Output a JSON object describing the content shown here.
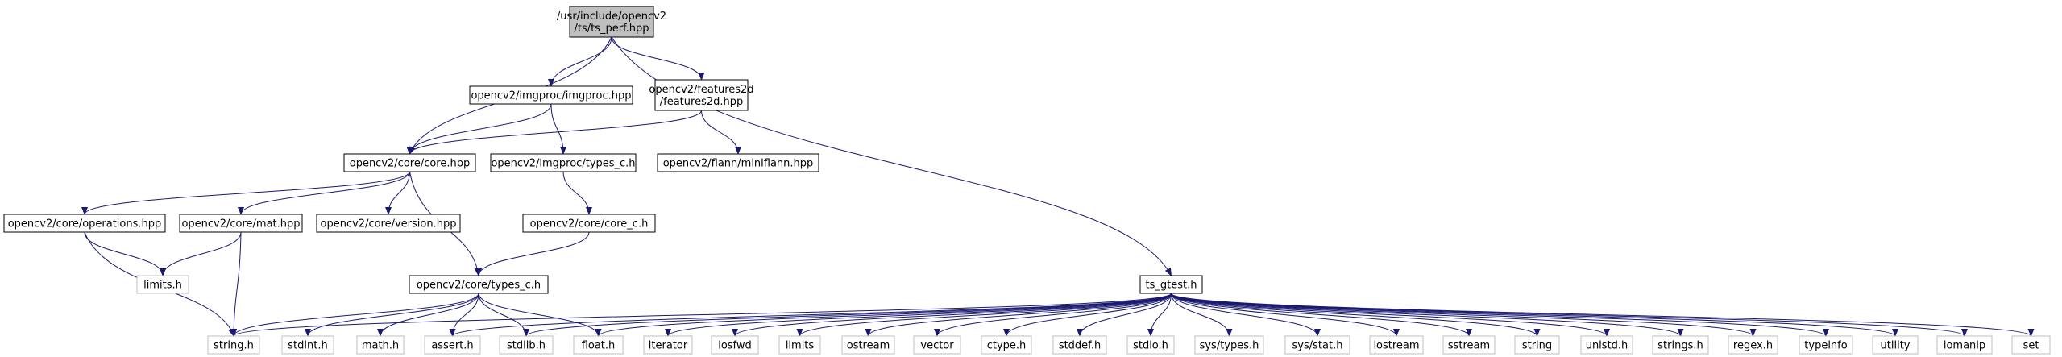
{
  "colors": {
    "edge": "#191970",
    "node_border": "#000000",
    "external_border": "#bfbfbf",
    "root_fill": "#bfbfbf",
    "node_fill": "#ffffff",
    "text": "#000000"
  },
  "nodes": [
    {
      "id": "root",
      "lines": [
        "/usr/include/opencv2",
        "/ts/ts_perf.hpp"
      ],
      "kind": "root"
    },
    {
      "id": "imgproc",
      "lines": [
        "opencv2/imgproc/imgproc.hpp"
      ],
      "kind": "internal"
    },
    {
      "id": "features2d",
      "lines": [
        "opencv2/features2d",
        "/features2d.hpp"
      ],
      "kind": "internal"
    },
    {
      "id": "core",
      "lines": [
        "opencv2/core/core.hpp"
      ],
      "kind": "internal"
    },
    {
      "id": "imgproc_types_c",
      "lines": [
        "opencv2/imgproc/types_c.h"
      ],
      "kind": "internal"
    },
    {
      "id": "miniflann",
      "lines": [
        "opencv2/flann/miniflann.hpp"
      ],
      "kind": "internal"
    },
    {
      "id": "operations",
      "lines": [
        "opencv2/core/operations.hpp"
      ],
      "kind": "internal"
    },
    {
      "id": "mat",
      "lines": [
        "opencv2/core/mat.hpp"
      ],
      "kind": "internal"
    },
    {
      "id": "version",
      "lines": [
        "opencv2/core/version.hpp"
      ],
      "kind": "internal"
    },
    {
      "id": "core_c",
      "lines": [
        "opencv2/core/core_c.h"
      ],
      "kind": "internal"
    },
    {
      "id": "limits_h",
      "lines": [
        "limits.h"
      ],
      "kind": "external"
    },
    {
      "id": "core_types_c",
      "lines": [
        "opencv2/core/types_c.h"
      ],
      "kind": "internal"
    },
    {
      "id": "ts_gtest",
      "lines": [
        "ts_gtest.h"
      ],
      "kind": "internal"
    },
    {
      "id": "string_h",
      "lines": [
        "string.h"
      ],
      "kind": "external"
    },
    {
      "id": "stdint_h",
      "lines": [
        "stdint.h"
      ],
      "kind": "external"
    },
    {
      "id": "math_h",
      "lines": [
        "math.h"
      ],
      "kind": "external"
    },
    {
      "id": "assert_h",
      "lines": [
        "assert.h"
      ],
      "kind": "external"
    },
    {
      "id": "stdlib_h",
      "lines": [
        "stdlib.h"
      ],
      "kind": "external"
    },
    {
      "id": "float_h",
      "lines": [
        "float.h"
      ],
      "kind": "external"
    },
    {
      "id": "iterator",
      "lines": [
        "iterator"
      ],
      "kind": "external"
    },
    {
      "id": "iosfwd",
      "lines": [
        "iosfwd"
      ],
      "kind": "external"
    },
    {
      "id": "limits",
      "lines": [
        "limits"
      ],
      "kind": "external"
    },
    {
      "id": "ostream",
      "lines": [
        "ostream"
      ],
      "kind": "external"
    },
    {
      "id": "vector",
      "lines": [
        "vector"
      ],
      "kind": "external"
    },
    {
      "id": "ctype_h",
      "lines": [
        "ctype.h"
      ],
      "kind": "external"
    },
    {
      "id": "stddef_h",
      "lines": [
        "stddef.h"
      ],
      "kind": "external"
    },
    {
      "id": "stdio_h",
      "lines": [
        "stdio.h"
      ],
      "kind": "external"
    },
    {
      "id": "sys_types_h",
      "lines": [
        "sys/types.h"
      ],
      "kind": "external"
    },
    {
      "id": "sys_stat_h",
      "lines": [
        "sys/stat.h"
      ],
      "kind": "external"
    },
    {
      "id": "iostream",
      "lines": [
        "iostream"
      ],
      "kind": "external"
    },
    {
      "id": "sstream",
      "lines": [
        "sstream"
      ],
      "kind": "external"
    },
    {
      "id": "string",
      "lines": [
        "string"
      ],
      "kind": "external"
    },
    {
      "id": "unistd_h",
      "lines": [
        "unistd.h"
      ],
      "kind": "external"
    },
    {
      "id": "strings_h",
      "lines": [
        "strings.h"
      ],
      "kind": "external"
    },
    {
      "id": "regex_h",
      "lines": [
        "regex.h"
      ],
      "kind": "external"
    },
    {
      "id": "typeinfo",
      "lines": [
        "typeinfo"
      ],
      "kind": "external"
    },
    {
      "id": "utility",
      "lines": [
        "utility"
      ],
      "kind": "external"
    },
    {
      "id": "iomanip",
      "lines": [
        "iomanip"
      ],
      "kind": "external"
    },
    {
      "id": "set",
      "lines": [
        "set"
      ],
      "kind": "external"
    }
  ],
  "edges": [
    [
      "root",
      "core"
    ],
    [
      "root",
      "imgproc"
    ],
    [
      "root",
      "features2d"
    ],
    [
      "root",
      "ts_gtest"
    ],
    [
      "imgproc",
      "core"
    ],
    [
      "imgproc",
      "imgproc_types_c"
    ],
    [
      "features2d",
      "core"
    ],
    [
      "features2d",
      "miniflann"
    ],
    [
      "core",
      "operations"
    ],
    [
      "core",
      "mat"
    ],
    [
      "core",
      "version"
    ],
    [
      "core",
      "core_types_c"
    ],
    [
      "imgproc_types_c",
      "core_c"
    ],
    [
      "core_c",
      "core_types_c"
    ],
    [
      "operations",
      "limits_h"
    ],
    [
      "operations",
      "string_h"
    ],
    [
      "mat",
      "limits_h"
    ],
    [
      "mat",
      "string_h"
    ],
    [
      "core_types_c",
      "string_h"
    ],
    [
      "core_types_c",
      "stdint_h"
    ],
    [
      "core_types_c",
      "math_h"
    ],
    [
      "core_types_c",
      "assert_h"
    ],
    [
      "core_types_c",
      "stdlib_h"
    ],
    [
      "core_types_c",
      "float_h"
    ],
    [
      "ts_gtest",
      "string_h"
    ],
    [
      "ts_gtest",
      "assert_h"
    ],
    [
      "ts_gtest",
      "stdlib_h"
    ],
    [
      "ts_gtest",
      "float_h"
    ],
    [
      "ts_gtest",
      "iterator"
    ],
    [
      "ts_gtest",
      "iosfwd"
    ],
    [
      "ts_gtest",
      "limits"
    ],
    [
      "ts_gtest",
      "ostream"
    ],
    [
      "ts_gtest",
      "vector"
    ],
    [
      "ts_gtest",
      "ctype_h"
    ],
    [
      "ts_gtest",
      "stddef_h"
    ],
    [
      "ts_gtest",
      "stdio_h"
    ],
    [
      "ts_gtest",
      "sys_types_h"
    ],
    [
      "ts_gtest",
      "sys_stat_h"
    ],
    [
      "ts_gtest",
      "iostream"
    ],
    [
      "ts_gtest",
      "sstream"
    ],
    [
      "ts_gtest",
      "string"
    ],
    [
      "ts_gtest",
      "unistd_h"
    ],
    [
      "ts_gtest",
      "strings_h"
    ],
    [
      "ts_gtest",
      "regex_h"
    ],
    [
      "ts_gtest",
      "typeinfo"
    ],
    [
      "ts_gtest",
      "utility"
    ],
    [
      "ts_gtest",
      "iomanip"
    ],
    [
      "ts_gtest",
      "set"
    ]
  ]
}
